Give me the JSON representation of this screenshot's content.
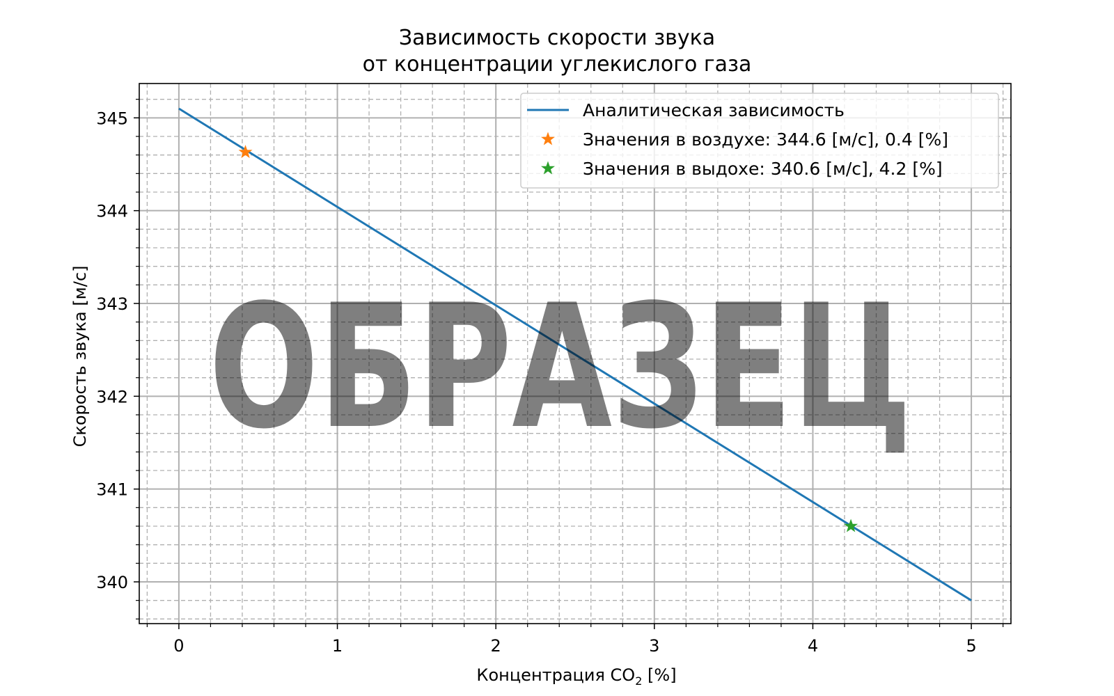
{
  "chart_data": {
    "type": "line",
    "title_line1": "Зависимость скорости звука",
    "title_line2": "от концентрации углекислого газа",
    "xlabel_main": "Концентрация CO",
    "xlabel_sub": "2",
    "xlabel_end": " [%]",
    "ylabel": "Скорость звука [м/с]",
    "xlim": [
      -0.25,
      5.25
    ],
    "ylim": [
      339.55,
      345.37
    ],
    "x_ticks": [
      0,
      1,
      2,
      3,
      4,
      5
    ],
    "x_tick_labels": [
      "0",
      "1",
      "2",
      "3",
      "4",
      "5"
    ],
    "y_ticks": [
      340,
      341,
      342,
      343,
      344,
      345
    ],
    "y_tick_labels": [
      "340",
      "341",
      "342",
      "343",
      "344",
      "345"
    ],
    "grid": {
      "major": true,
      "minor": true,
      "minor_style": "dashed"
    },
    "legend_position": "top-right",
    "series": [
      {
        "name": "Аналитическая зависимость",
        "kind": "line",
        "color": "#1f77b4",
        "x": [
          0,
          5
        ],
        "y": [
          345.1,
          339.8
        ]
      },
      {
        "name": "Значения в воздухе: 344.6 [м/с], 0.4 [%]",
        "kind": "marker",
        "marker": "star",
        "color": "#ff7f0e",
        "x": [
          0.42
        ],
        "y": [
          344.63
        ]
      },
      {
        "name": "Значения в выдохе: 340.6 [м/с], 4.2 [%]",
        "kind": "marker",
        "marker": "star",
        "color": "#2ca02c",
        "x": [
          4.24
        ],
        "y": [
          340.6
        ]
      }
    ],
    "watermark": "ОБРАЗЕЦ"
  }
}
